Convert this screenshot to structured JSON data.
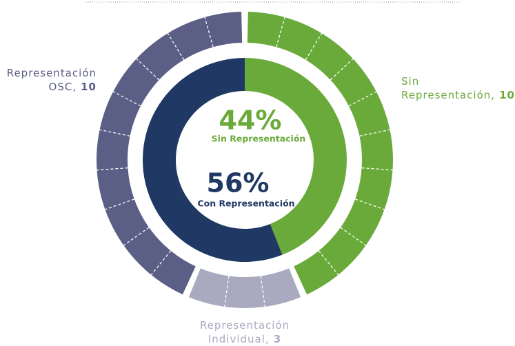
{
  "chart_data": {
    "type": "donut",
    "series": [
      {
        "name": "Sin Representación,",
        "color": "#6aaa3a",
        "values": [
          10
        ]
      },
      {
        "name": "Representación Individual,",
        "color": "#a9a9c0",
        "values": [
          3
        ]
      },
      {
        "name": "Representación OSC,",
        "color": "#5b5f86",
        "values": [
          10
        ]
      }
    ],
    "inner": {
      "categories": [
        "Sin Representación",
        "Con Representación"
      ],
      "values": [
        44,
        56
      ],
      "value_labels": [
        "44%",
        "56%"
      ],
      "colors": [
        "#6aaa3a",
        "#1f3864"
      ]
    }
  }
}
